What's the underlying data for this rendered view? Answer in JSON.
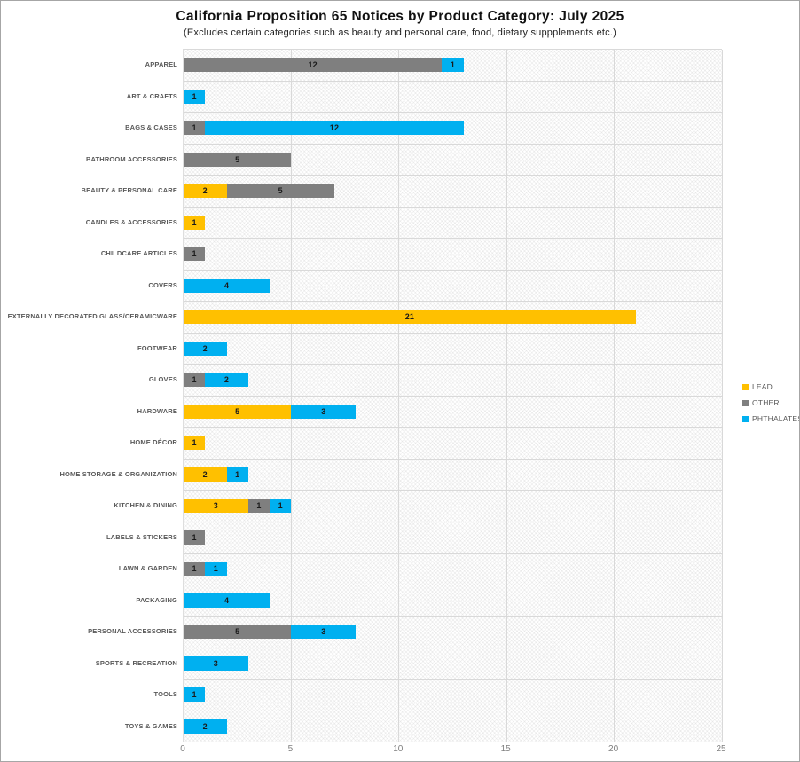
{
  "chart_data": {
    "type": "bar",
    "orientation": "horizontal",
    "stacked": true,
    "title": "California Proposition 65 Notices by Product Category: July 2025",
    "subtitle": "(Excludes certain categories such as beauty and personal care, food, dietary suppplements etc.)",
    "xlim": [
      0,
      25
    ],
    "xticks": [
      0,
      5,
      10,
      15,
      20,
      25
    ],
    "grid": true,
    "legend_position": "right",
    "plot_background": "diagonal-crosshatch",
    "categories": [
      "APPAREL",
      "ART & CRAFTS",
      "BAGS & CASES",
      "BATHROOM ACCESSORIES",
      "BEAUTY & PERSONAL CARE",
      "CANDLES & ACCESSORIES",
      "CHILDCARE ARTICLES",
      "COVERS",
      "EXTERNALLY DECORATED GLASS/CERAMICWARE",
      "FOOTWEAR",
      "GLOVES",
      "HARDWARE",
      "HOME DÉCOR",
      "HOME STORAGE & ORGANIZATION",
      "KITCHEN & DINING",
      "LABELS & STICKERS",
      "LAWN & GARDEN",
      "PACKAGING",
      "PERSONAL ACCESSORIES",
      "SPORTS & RECREATION",
      "TOOLS",
      "TOYS & GAMES"
    ],
    "series": [
      {
        "name": "LEAD",
        "color": "#FFC000",
        "values": [
          0,
          0,
          0,
          0,
          2,
          1,
          0,
          0,
          21,
          0,
          0,
          5,
          1,
          2,
          3,
          0,
          0,
          0,
          0,
          0,
          0,
          0
        ]
      },
      {
        "name": "OTHER",
        "color": "#7F7F7F",
        "values": [
          12,
          0,
          1,
          5,
          5,
          0,
          1,
          0,
          0,
          0,
          1,
          0,
          0,
          0,
          1,
          1,
          1,
          0,
          5,
          0,
          0,
          0
        ]
      },
      {
        "name": "PHTHALATES",
        "color": "#00B0F0",
        "values": [
          1,
          1,
          12,
          0,
          0,
          0,
          0,
          4,
          0,
          2,
          2,
          3,
          0,
          1,
          1,
          0,
          1,
          4,
          3,
          3,
          1,
          2
        ]
      }
    ]
  }
}
